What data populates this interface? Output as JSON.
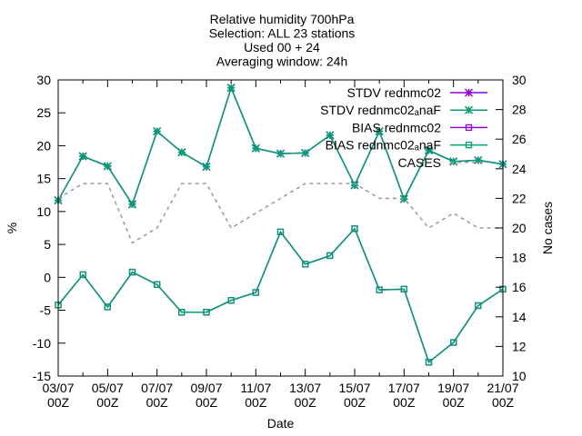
{
  "chart_data": {
    "type": "line",
    "title_lines": [
      "Relative humidity 700hPa",
      "Selection: ALL      23 stations",
      "Used 00 + 24",
      "Averaging window: 24h"
    ],
    "xlabel": "Date",
    "ylabel": "%",
    "y2label": "No cases",
    "ylim": [
      -15,
      30
    ],
    "y2lim": [
      10,
      30
    ],
    "yticks": [
      -15,
      -10,
      -5,
      0,
      5,
      10,
      15,
      20,
      25,
      30
    ],
    "y2ticks": [
      10,
      12,
      14,
      16,
      18,
      20,
      22,
      24,
      26,
      28,
      30
    ],
    "xticks": [
      {
        "day": 0,
        "line1": "03/07",
        "line2": "00Z"
      },
      {
        "day": 2,
        "line1": "05/07",
        "line2": "00Z"
      },
      {
        "day": 4,
        "line1": "07/07",
        "line2": "00Z"
      },
      {
        "day": 6,
        "line1": "09/07",
        "line2": "00Z"
      },
      {
        "day": 8,
        "line1": "11/07",
        "line2": "00Z"
      },
      {
        "day": 10,
        "line1": "13/07",
        "line2": "00Z"
      },
      {
        "day": 12,
        "line1": "15/07",
        "line2": "00Z"
      },
      {
        "day": 14,
        "line1": "17/07",
        "line2": "00Z"
      },
      {
        "day": 16,
        "line1": "19/07",
        "line2": "00Z"
      },
      {
        "day": 18,
        "line1": "21/07",
        "line2": "00Z"
      }
    ],
    "x": [
      0,
      1,
      2,
      3,
      4,
      5,
      6,
      7,
      8,
      9,
      10,
      11,
      12,
      13,
      14,
      15,
      16,
      17,
      18
    ],
    "legend_position": "top-right",
    "grid": false,
    "series": [
      {
        "name": "STDV rednmc02",
        "axis": "y",
        "marker": "star",
        "color": "#9400d3",
        "values": [
          11.7,
          18.4,
          16.9,
          11.1,
          22.2,
          19.0,
          16.8,
          28.8,
          19.6,
          18.8,
          18.9,
          21.6,
          14.0,
          22.2,
          11.9,
          19.3,
          17.6,
          17.8,
          17.2
        ]
      },
      {
        "name": "STDV rednmc02ₐnaF",
        "axis": "y",
        "marker": "star",
        "color": "#009e73",
        "values": [
          11.7,
          18.4,
          16.9,
          11.1,
          22.2,
          19.0,
          16.8,
          28.8,
          19.6,
          18.8,
          18.9,
          21.6,
          14.0,
          22.2,
          11.9,
          19.3,
          17.6,
          17.8,
          17.2
        ]
      },
      {
        "name": "BIAS rednmc02",
        "axis": "y",
        "marker": "square",
        "color": "#9400d3",
        "values": [
          -4.2,
          0.4,
          -4.5,
          0.8,
          -1.1,
          -5.3,
          -5.3,
          -3.5,
          -2.3,
          6.9,
          2.0,
          3.3,
          7.4,
          -1.9,
          -1.8,
          -12.9,
          -9.9,
          -4.3,
          -1.8
        ]
      },
      {
        "name": "BIAS rednmc02ₐnaF",
        "axis": "y",
        "marker": "square",
        "color": "#009e73",
        "values": [
          -4.2,
          0.4,
          -4.5,
          0.8,
          -1.1,
          -5.3,
          -5.3,
          -3.5,
          -2.3,
          6.9,
          2.0,
          3.3,
          7.4,
          -1.9,
          -1.8,
          -12.9,
          -9.9,
          -4.3,
          -1.8
        ]
      },
      {
        "name": "CASES",
        "axis": "y2",
        "marker": "none",
        "color": "#999999",
        "dashed": true,
        "values": [
          22,
          23,
          23,
          19,
          20,
          23,
          23,
          20,
          21,
          22,
          23,
          23,
          23,
          22,
          22,
          20,
          21,
          20,
          20
        ]
      }
    ]
  }
}
